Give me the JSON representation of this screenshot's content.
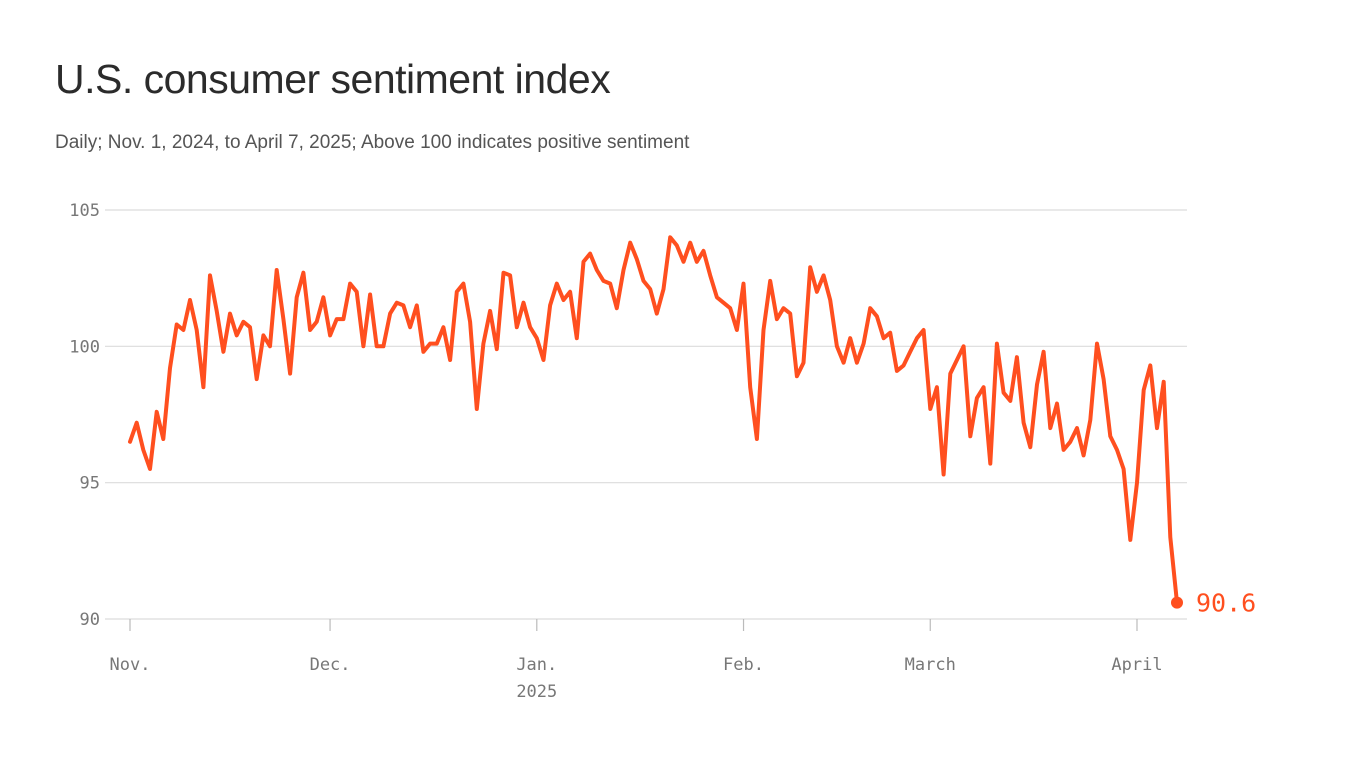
{
  "chart_data": {
    "type": "line",
    "title": "U.S. consumer sentiment index",
    "subtitle": "Daily; Nov. 1, 2024, to April 7, 2025; Above 100 indicates positive sentiment",
    "x_range": [
      "2024-11-01",
      "2025-04-07"
    ],
    "frequency": "daily",
    "ylim": [
      90,
      105
    ],
    "y_ticks": [
      {
        "value": 90,
        "label": "90"
      },
      {
        "value": 95,
        "label": "95"
      },
      {
        "value": 100,
        "label": "100"
      },
      {
        "value": 105,
        "label": "105"
      }
    ],
    "x_ticks": [
      {
        "date": "2024-11-01",
        "label": "Nov."
      },
      {
        "date": "2024-12-01",
        "label": "Dec."
      },
      {
        "date": "2025-01-01",
        "label": "Jan.",
        "sublabel": "2025"
      },
      {
        "date": "2025-02-01",
        "label": "Feb."
      },
      {
        "date": "2025-03-01",
        "label": "March"
      },
      {
        "date": "2025-04-01",
        "label": "April"
      }
    ],
    "grid": "horizontal",
    "color": "#FF4F1F",
    "end_label": "90.6",
    "values": [
      96.5,
      97.2,
      96.2,
      95.5,
      97.6,
      96.6,
      99.2,
      100.8,
      100.6,
      101.7,
      100.6,
      98.5,
      102.6,
      101.3,
      99.8,
      101.2,
      100.4,
      100.9,
      100.7,
      98.8,
      100.4,
      100.0,
      102.8,
      101.0,
      99.0,
      101.8,
      102.7,
      100.6,
      100.9,
      101.8,
      100.4,
      101.0,
      101.0,
      102.3,
      102.0,
      100.0,
      101.9,
      100.0,
      100.0,
      101.2,
      101.6,
      101.5,
      100.7,
      101.5,
      99.8,
      100.1,
      100.1,
      100.7,
      99.5,
      102.0,
      102.3,
      100.9,
      97.7,
      100.1,
      101.3,
      99.9,
      102.7,
      102.6,
      100.7,
      101.6,
      100.7,
      100.3,
      99.5,
      101.5,
      102.3,
      101.7,
      102.0,
      100.3,
      103.1,
      103.4,
      102.8,
      102.4,
      102.3,
      101.4,
      102.8,
      103.8,
      103.2,
      102.4,
      102.1,
      101.2,
      102.1,
      104.0,
      103.7,
      103.1,
      103.8,
      103.1,
      103.5,
      102.6,
      101.8,
      101.6,
      101.4,
      100.6,
      102.3,
      98.5,
      96.6,
      100.6,
      102.4,
      101.0,
      101.4,
      101.2,
      98.9,
      99.4,
      102.9,
      102.0,
      102.6,
      101.7,
      100.0,
      99.4,
      100.3,
      99.4,
      100.1,
      101.4,
      101.1,
      100.3,
      100.5,
      99.1,
      99.3,
      99.8,
      100.3,
      100.6,
      97.7,
      98.5,
      95.3,
      99.0,
      99.5,
      100.0,
      96.7,
      98.1,
      98.5,
      95.7,
      100.1,
      98.3,
      98.0,
      99.6,
      97.2,
      96.3,
      98.6,
      99.8,
      97.0,
      97.9,
      96.2,
      96.5,
      97.0,
      96.0,
      97.3,
      100.1,
      98.8,
      96.7,
      96.2,
      95.5,
      92.9,
      95.0,
      98.4,
      99.3,
      97.0,
      98.7,
      93.0,
      90.6
    ]
  }
}
